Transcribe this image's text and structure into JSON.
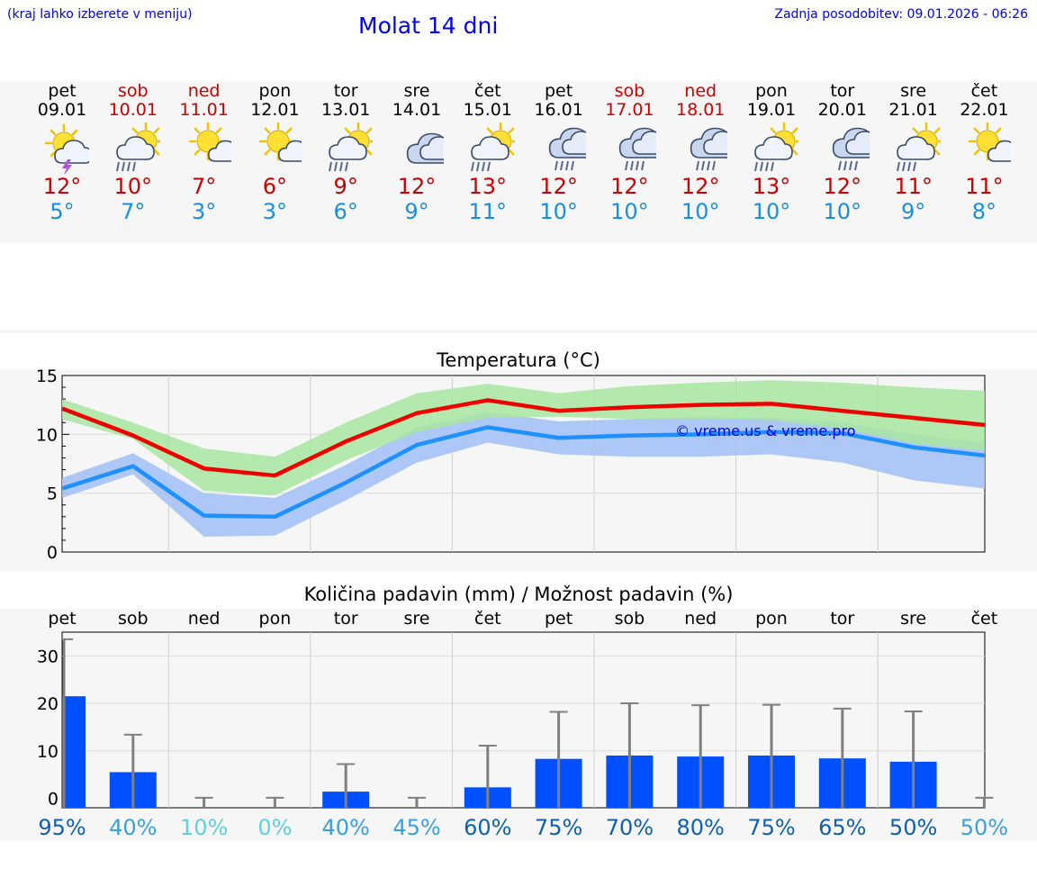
{
  "header": {
    "menu_hint": "(kraj lahko izberete v meniju)",
    "title": "Molat 14 dni",
    "last_update": "Zadnja posodobitev: 09.01.2026 - 06:26"
  },
  "days": [
    {
      "name": "pet",
      "date": "09.01",
      "icon": "sun-cloud-thunder-icon",
      "tmax": "12°",
      "tmin": "5°",
      "weekend": false
    },
    {
      "name": "sob",
      "date": "10.01",
      "icon": "sun-cloud-rain-icon",
      "tmax": "10°",
      "tmin": "7°",
      "weekend": true
    },
    {
      "name": "ned",
      "date": "11.01",
      "icon": "sun-cloud-icon",
      "tmax": "7°",
      "tmin": "3°",
      "weekend": true
    },
    {
      "name": "pon",
      "date": "12.01",
      "icon": "sun-cloud-icon",
      "tmax": "6°",
      "tmin": "3°",
      "weekend": false
    },
    {
      "name": "tor",
      "date": "13.01",
      "icon": "sun-cloud-rain-icon",
      "tmax": "9°",
      "tmin": "6°",
      "weekend": false
    },
    {
      "name": "sre",
      "date": "14.01",
      "icon": "cloud-icon",
      "tmax": "12°",
      "tmin": "9°",
      "weekend": false
    },
    {
      "name": "čet",
      "date": "15.01",
      "icon": "sun-cloud-rain-icon",
      "tmax": "13°",
      "tmin": "11°",
      "weekend": false
    },
    {
      "name": "pet",
      "date": "16.01",
      "icon": "cloud-rain-icon",
      "tmax": "12°",
      "tmin": "10°",
      "weekend": false
    },
    {
      "name": "sob",
      "date": "17.01",
      "icon": "cloud-rain-icon",
      "tmax": "12°",
      "tmin": "10°",
      "weekend": true
    },
    {
      "name": "ned",
      "date": "18.01",
      "icon": "cloud-rain-icon",
      "tmax": "12°",
      "tmin": "10°",
      "weekend": true
    },
    {
      "name": "pon",
      "date": "19.01",
      "icon": "sun-cloud-rain-icon",
      "tmax": "13°",
      "tmin": "10°",
      "weekend": false
    },
    {
      "name": "tor",
      "date": "20.01",
      "icon": "cloud-rain-icon",
      "tmax": "12°",
      "tmin": "10°",
      "weekend": false
    },
    {
      "name": "sre",
      "date": "21.01",
      "icon": "sun-cloud-rain-icon",
      "tmax": "11°",
      "tmin": "9°",
      "weekend": false
    },
    {
      "name": "čet",
      "date": "22.01",
      "icon": "sun-cloud-icon",
      "tmax": "11°",
      "tmin": "8°",
      "weekend": false
    }
  ],
  "colors": {
    "weekend": "#cc0000",
    "weekday": "#000000",
    "tmax": "#cc0000",
    "tmin": "#1a8fe0",
    "max_line": "#ee0000",
    "min_line": "#1e90ff",
    "max_band": "#a8e6a0",
    "min_band": "#a9c4f5",
    "bar": "#0050ff",
    "errbar": "#808080",
    "watermark": "#0000ee"
  },
  "chart_data": [
    {
      "type": "line",
      "title": "Temperatura (°C)",
      "x": [
        0,
        1,
        2,
        3,
        4,
        5,
        6,
        7,
        8,
        9,
        10,
        11,
        12,
        13
      ],
      "ylim": [
        0,
        15
      ],
      "yticks": [
        "0",
        "5",
        "10",
        "15"
      ],
      "series": [
        {
          "name": "max",
          "values": [
            12.2,
            9.9,
            7.1,
            6.5,
            9.4,
            11.8,
            12.9,
            12.0,
            12.3,
            12.5,
            12.6,
            12.0,
            11.4,
            10.8
          ],
          "band_low": [
            11.3,
            9.6,
            5.2,
            4.8,
            7.8,
            10.2,
            11.4,
            11.5,
            11.3,
            11.3,
            11.2,
            10.5,
            9.2,
            8.6
          ],
          "band_high": [
            13.0,
            11.0,
            8.8,
            8.1,
            11.0,
            13.5,
            14.3,
            13.5,
            14.1,
            14.4,
            14.6,
            14.4,
            14.0,
            13.7
          ]
        },
        {
          "name": "min",
          "values": [
            5.4,
            7.3,
            3.1,
            3.0,
            5.9,
            9.1,
            10.6,
            9.7,
            9.9,
            10.0,
            10.2,
            10.1,
            8.9,
            8.2
          ],
          "band_low": [
            4.6,
            6.6,
            1.3,
            1.4,
            4.4,
            7.6,
            9.3,
            8.3,
            8.1,
            8.1,
            8.3,
            7.6,
            6.1,
            5.4
          ],
          "band_high": [
            6.3,
            8.4,
            5.0,
            4.6,
            7.4,
            10.6,
            11.9,
            11.1,
            11.3,
            11.5,
            11.4,
            11.0,
            10.0,
            9.3
          ]
        }
      ],
      "annotation": "© vreme.us & vreme.pro"
    },
    {
      "type": "bar",
      "title": "Količina padavin (mm) / Možnost padavin (%)",
      "categories": [
        "pet",
        "sob",
        "ned",
        "pon",
        "tor",
        "sre",
        "čet",
        "pet",
        "sob",
        "ned",
        "pon",
        "tor",
        "sre",
        "čet"
      ],
      "values": [
        21.5,
        5.5,
        0,
        0,
        1.4,
        0,
        2.3,
        8.3,
        9.0,
        8.8,
        9.0,
        8.4,
        7.7,
        0
      ],
      "error_high": [
        33.5,
        13.4,
        0.1,
        0.1,
        7.2,
        0.1,
        11.1,
        18.2,
        20.0,
        19.6,
        19.7,
        18.9,
        18.3,
        0.1
      ],
      "ylim": [
        -2,
        35
      ],
      "yticks": [
        "0",
        "10",
        "20",
        "30"
      ],
      "probabilities": [
        "95%",
        "40%",
        "10%",
        "0%",
        "40%",
        "45%",
        "60%",
        "75%",
        "70%",
        "80%",
        "75%",
        "65%",
        "50%",
        "50%"
      ],
      "probability_colors": [
        "#1060b0",
        "#3aa0e0",
        "#60d0e0",
        "#60d0e0",
        "#3aa0e0",
        "#3aa0e0",
        "#1060b0",
        "#1060b0",
        "#1060b0",
        "#1060b0",
        "#1060b0",
        "#1060b0",
        "#1060b0",
        "#3aa0e0"
      ]
    }
  ]
}
